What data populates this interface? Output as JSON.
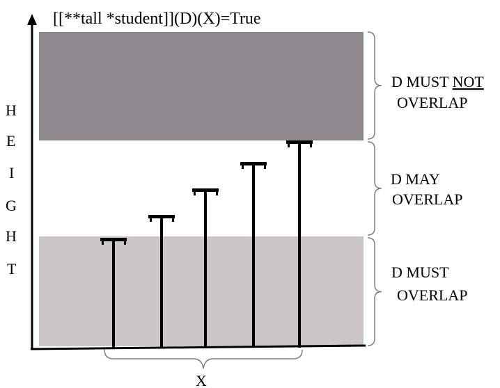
{
  "title": "[[**tall *student]](D)(X)=True",
  "y_axis_label": [
    "H",
    "E",
    "I",
    "G",
    "H",
    "T"
  ],
  "x_axis_label": "X",
  "regions": [
    {
      "id": "must-not",
      "line1_prefix": "D MUST ",
      "line1_emphasis": "NOT",
      "line2": "OVERLAP",
      "color": "#8c888c"
    },
    {
      "id": "may",
      "line1_prefix": "D MAY",
      "line1_emphasis": "",
      "line2": "OVERLAP",
      "color": "#ffffff"
    },
    {
      "id": "must",
      "line1_prefix": "D MUST",
      "line1_emphasis": "",
      "line2": "OVERLAP",
      "color": "#cbc7c7"
    }
  ],
  "students": [
    {
      "id": 1
    },
    {
      "id": 2
    },
    {
      "id": 3
    },
    {
      "id": 4
    },
    {
      "id": 5
    }
  ],
  "colors": {
    "axis": "#000000",
    "bar": "#000000",
    "brace": "#808080"
  }
}
